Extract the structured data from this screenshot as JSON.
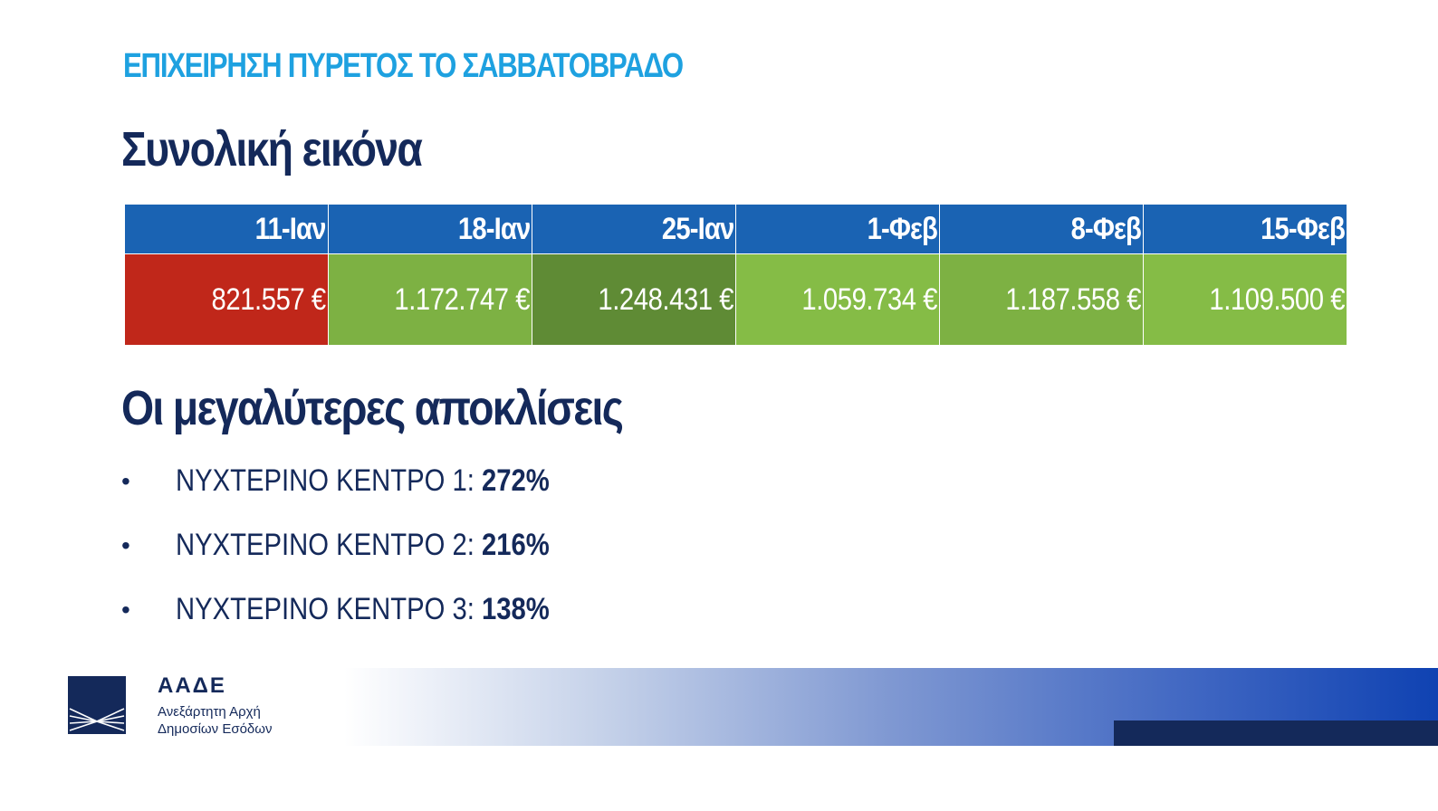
{
  "slide": {
    "kicker": "ΕΠΙΧΕΙΡΗΣΗ ΠΥΡΕΤΟΣ  ΤΟ ΣΑΒΒΑΤΟΒΡΑΔΟ",
    "overview_heading": "Συνολική εικόνα",
    "deviations_heading": "Οι μεγαλύτερες αποκλίσεις"
  },
  "table": {
    "header_color": "#1a63b3",
    "columns": [
      {
        "date": "11-Ιαν",
        "value": "821.557 €",
        "color": "#c0271a"
      },
      {
        "date": "18-Ιαν",
        "value": "1.172.747 €",
        "color": "#7db143"
      },
      {
        "date": "25-Ιαν",
        "value": "1.248.431 €",
        "color": "#5f8b35"
      },
      {
        "date": "1-Φεβ",
        "value": "1.059.734 €",
        "color": "#85bc46"
      },
      {
        "date": "8-Φεβ",
        "value": "1.187.558 €",
        "color": "#7db143"
      },
      {
        "date": "15-Φεβ",
        "value": "1.109.500 €",
        "color": "#85bc46"
      }
    ]
  },
  "deviations": [
    {
      "label": "ΝΥΧΤΕΡΙΝΟ ΚΕΝΤΡΟ 1: ",
      "value": "272%"
    },
    {
      "label": "ΝΥΧΤΕΡΙΝΟ ΚΕΝΤΡΟ 2: ",
      "value": "216%"
    },
    {
      "label": "ΝΥΧΤΕΡΙΝΟ ΚΕΝΤΡΟ 3: ",
      "value": "138%"
    }
  ],
  "logo": {
    "name": "ΑΑΔΕ",
    "line1": "Ανεξάρτητη Αρχή",
    "line2": "Δημοσίων Εσόδων",
    "icon": "aade-emblem-icon"
  },
  "colors": {
    "kicker": "#1ea1e0",
    "heading": "#14295a",
    "band_dark": "#14295a",
    "band_blue": "#0f42b2"
  }
}
